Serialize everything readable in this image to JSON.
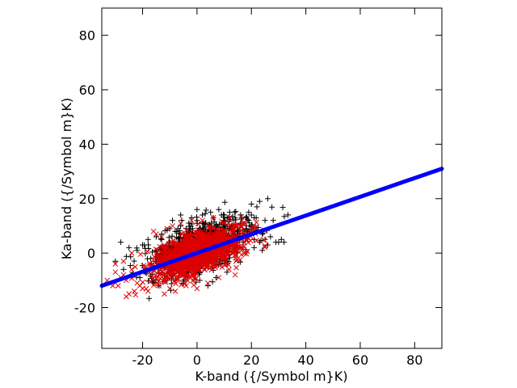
{
  "chart_data": {
    "type": "scatter",
    "title": "",
    "xlabel": "K-band ({/Symbol m}K)",
    "ylabel": "Ka-band ({/Symbol m}K)",
    "xlim": [
      -35,
      90
    ],
    "ylim": [
      -35,
      90
    ],
    "xticks": [
      -20,
      0,
      20,
      40,
      60,
      80
    ],
    "yticks": [
      -20,
      0,
      20,
      40,
      60,
      80
    ],
    "x_tick_labels": [
      "-20",
      "0",
      "20",
      "40",
      "60",
      "80"
    ],
    "y_tick_labels": [
      "-20",
      "0",
      "20",
      "40",
      "60",
      "80"
    ],
    "grid": false,
    "legend": "none",
    "series": [
      {
        "marker": "plus",
        "color": "#000000",
        "points": [
          [
            -28,
            4
          ],
          [
            -25,
            2
          ],
          [
            -22,
            1
          ],
          [
            -20,
            3
          ],
          [
            -18,
            5
          ],
          [
            -17,
            -2
          ],
          [
            -15,
            6
          ],
          [
            -13,
            7
          ],
          [
            -12,
            -8
          ],
          [
            -10,
            9
          ],
          [
            -9,
            12
          ],
          [
            -8,
            -10
          ],
          [
            -6,
            10
          ],
          [
            -5,
            -11
          ],
          [
            -3,
            11
          ],
          [
            -2,
            13
          ],
          [
            0,
            12
          ],
          [
            1,
            -10
          ],
          [
            2,
            14
          ],
          [
            3,
            11
          ],
          [
            4,
            -12
          ],
          [
            5,
            15
          ],
          [
            6,
            13
          ],
          [
            7,
            -9
          ],
          [
            8,
            16
          ],
          [
            9,
            14
          ],
          [
            10,
            12
          ],
          [
            11,
            -7
          ],
          [
            12,
            15
          ],
          [
            13,
            10
          ],
          [
            14,
            13
          ],
          [
            15,
            8
          ],
          [
            16,
            11
          ],
          [
            17,
            7
          ],
          [
            18,
            9
          ],
          [
            19,
            6
          ],
          [
            20,
            10
          ],
          [
            21,
            5
          ],
          [
            22,
            8
          ],
          [
            23,
            4
          ],
          [
            24,
            7
          ],
          [
            25,
            5
          ],
          [
            26,
            3
          ],
          [
            27,
            6
          ],
          [
            29,
            4
          ],
          [
            31,
            5
          ],
          [
            16,
            14
          ],
          [
            18,
            13
          ],
          [
            19,
            12
          ],
          [
            20,
            14
          ],
          [
            21,
            13
          ],
          [
            19,
            15
          ],
          [
            20,
            18
          ],
          [
            22,
            17
          ],
          [
            25,
            12
          ],
          [
            23,
            19
          ],
          [
            26,
            20
          ],
          [
            28,
            12
          ],
          [
            30,
            4
          ],
          [
            32,
            4
          ],
          [
            -30,
            -3
          ],
          [
            -27,
            -6
          ],
          [
            -24,
            -8
          ],
          [
            -21,
            -9
          ],
          [
            -19,
            -7
          ],
          [
            -16,
            -11
          ],
          [
            -14,
            -12
          ],
          [
            -11,
            -10
          ],
          [
            -8,
            8
          ],
          [
            -6,
            14
          ],
          [
            -4,
            9
          ],
          [
            0,
            16
          ],
          [
            2,
            11
          ],
          [
            6,
            9
          ],
          [
            10,
            14
          ],
          [
            12,
            9
          ],
          [
            14,
            6
          ],
          [
            17,
            4
          ],
          [
            21,
            2
          ],
          [
            24,
            1
          ]
        ]
      },
      {
        "marker": "cross",
        "color": "#dd0000",
        "generator": {
          "count": 1400,
          "center": [
            0,
            0
          ],
          "sx": 8,
          "sy": 3.5,
          "slope": 0.3,
          "seed": 7
        },
        "points": [
          [
            -30,
            -7
          ],
          [
            -28,
            -9
          ],
          [
            -27,
            -8
          ],
          [
            -26,
            -10
          ],
          [
            -25,
            -15
          ],
          [
            -26,
            -16
          ],
          [
            -24,
            -6
          ],
          [
            -22,
            -11
          ],
          [
            -21,
            -12
          ],
          [
            -20,
            -13
          ],
          [
            -19,
            -5
          ],
          [
            -18,
            -14
          ],
          [
            -17,
            -9
          ],
          [
            -16,
            8
          ],
          [
            -15,
            7
          ],
          [
            -14,
            -12
          ],
          [
            -13,
            6
          ],
          [
            -12,
            -15
          ],
          [
            -11,
            9
          ],
          [
            -10,
            -13
          ],
          [
            -9,
            10
          ],
          [
            -8,
            -14
          ],
          [
            -6,
            11
          ],
          [
            -4,
            -12
          ],
          [
            -2,
            12
          ],
          [
            0,
            -13
          ],
          [
            2,
            12
          ],
          [
            4,
            -11
          ],
          [
            6,
            13
          ],
          [
            8,
            -9
          ],
          [
            10,
            11
          ],
          [
            12,
            13
          ],
          [
            14,
            -8
          ],
          [
            16,
            10
          ],
          [
            18,
            8
          ],
          [
            -31,
            -12
          ],
          [
            -33,
            -10
          ],
          [
            -29,
            -12
          ],
          [
            -23,
            -14
          ],
          [
            -24,
            0
          ],
          [
            -30,
            -4
          ],
          [
            -27,
            -3
          ]
        ]
      },
      {
        "marker": "line",
        "color": "#0000ff",
        "x": [
          -35,
          90
        ],
        "y": [
          -12,
          31
        ]
      }
    ]
  }
}
